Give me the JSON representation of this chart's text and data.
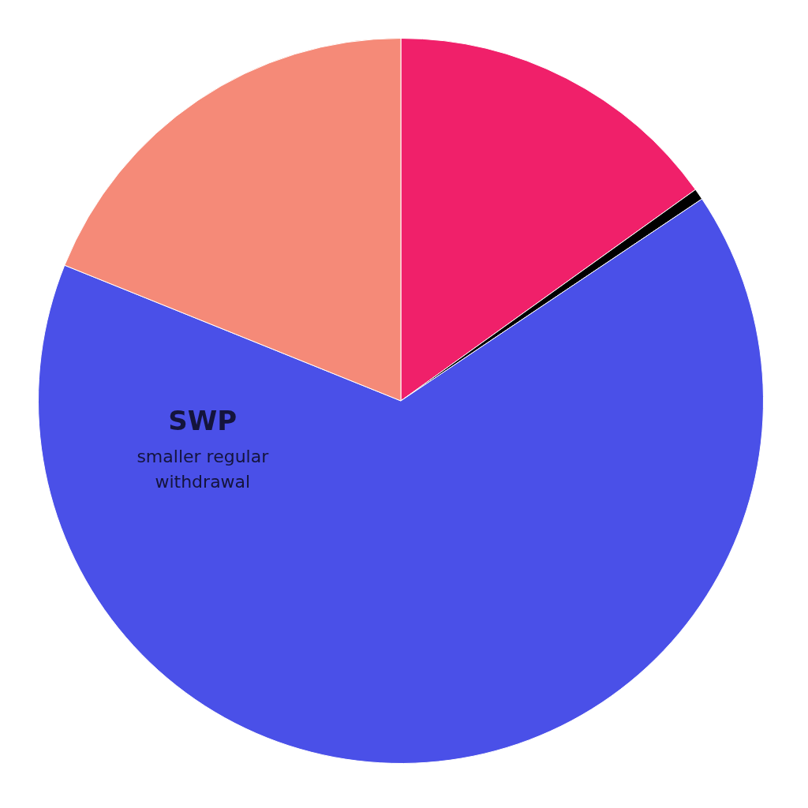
{
  "chart_data": {
    "type": "pie",
    "categories": [
      null,
      null,
      "SWP",
      null
    ],
    "values": [
      15.1,
      0.5,
      65.5,
      18.9
    ],
    "colors": [
      "#f0206a",
      "#000000",
      "#4a50e8",
      "#f58a78"
    ],
    "annotations": [
      "smaller regular withdrawal"
    ],
    "legend": false
  }
}
